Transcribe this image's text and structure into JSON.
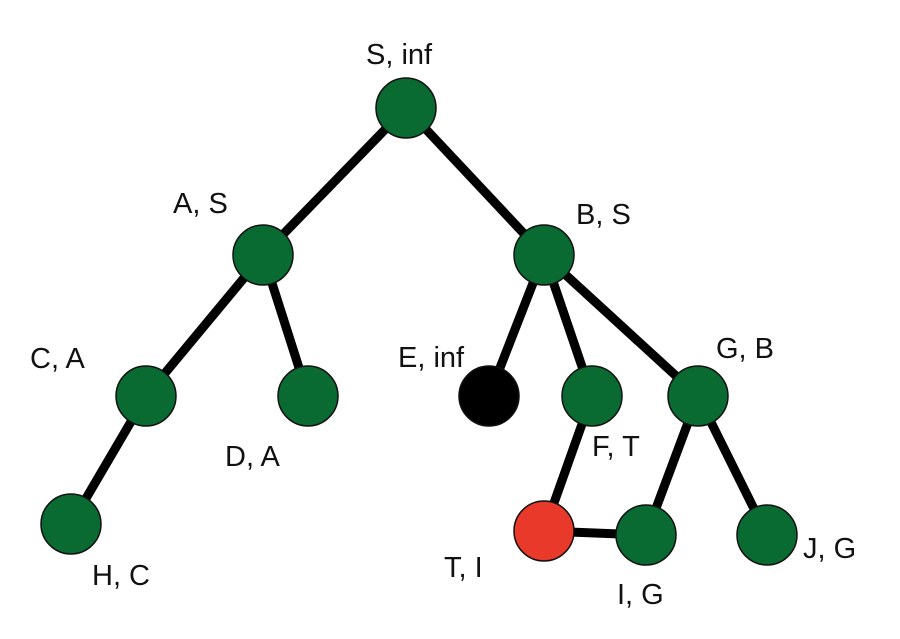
{
  "colors": {
    "node_default": "#0a6b32",
    "node_black": "#000000",
    "node_red": "#e8392a",
    "edge": "#000000"
  },
  "nodes": [
    {
      "id": "S",
      "label": "S, inf",
      "color": "node_default"
    },
    {
      "id": "A",
      "label": "A, S",
      "color": "node_default"
    },
    {
      "id": "B",
      "label": "B, S",
      "color": "node_default"
    },
    {
      "id": "C",
      "label": "C, A",
      "color": "node_default"
    },
    {
      "id": "D",
      "label": "D, A",
      "color": "node_default"
    },
    {
      "id": "E",
      "label": "E, inf",
      "color": "node_black"
    },
    {
      "id": "F",
      "label": "F, T",
      "color": "node_default"
    },
    {
      "id": "G",
      "label": "G, B",
      "color": "node_default"
    },
    {
      "id": "H",
      "label": "H, C",
      "color": "node_default"
    },
    {
      "id": "T",
      "label": "T, I",
      "color": "node_red"
    },
    {
      "id": "I",
      "label": "I, G",
      "color": "node_default"
    },
    {
      "id": "J",
      "label": "J, G",
      "color": "node_default"
    }
  ],
  "edges": [
    [
      "S",
      "A"
    ],
    [
      "S",
      "B"
    ],
    [
      "A",
      "C"
    ],
    [
      "A",
      "D"
    ],
    [
      "C",
      "H"
    ],
    [
      "B",
      "E"
    ],
    [
      "B",
      "F"
    ],
    [
      "B",
      "G"
    ],
    [
      "F",
      "T"
    ],
    [
      "T",
      "I"
    ],
    [
      "G",
      "I"
    ],
    [
      "G",
      "J"
    ]
  ]
}
